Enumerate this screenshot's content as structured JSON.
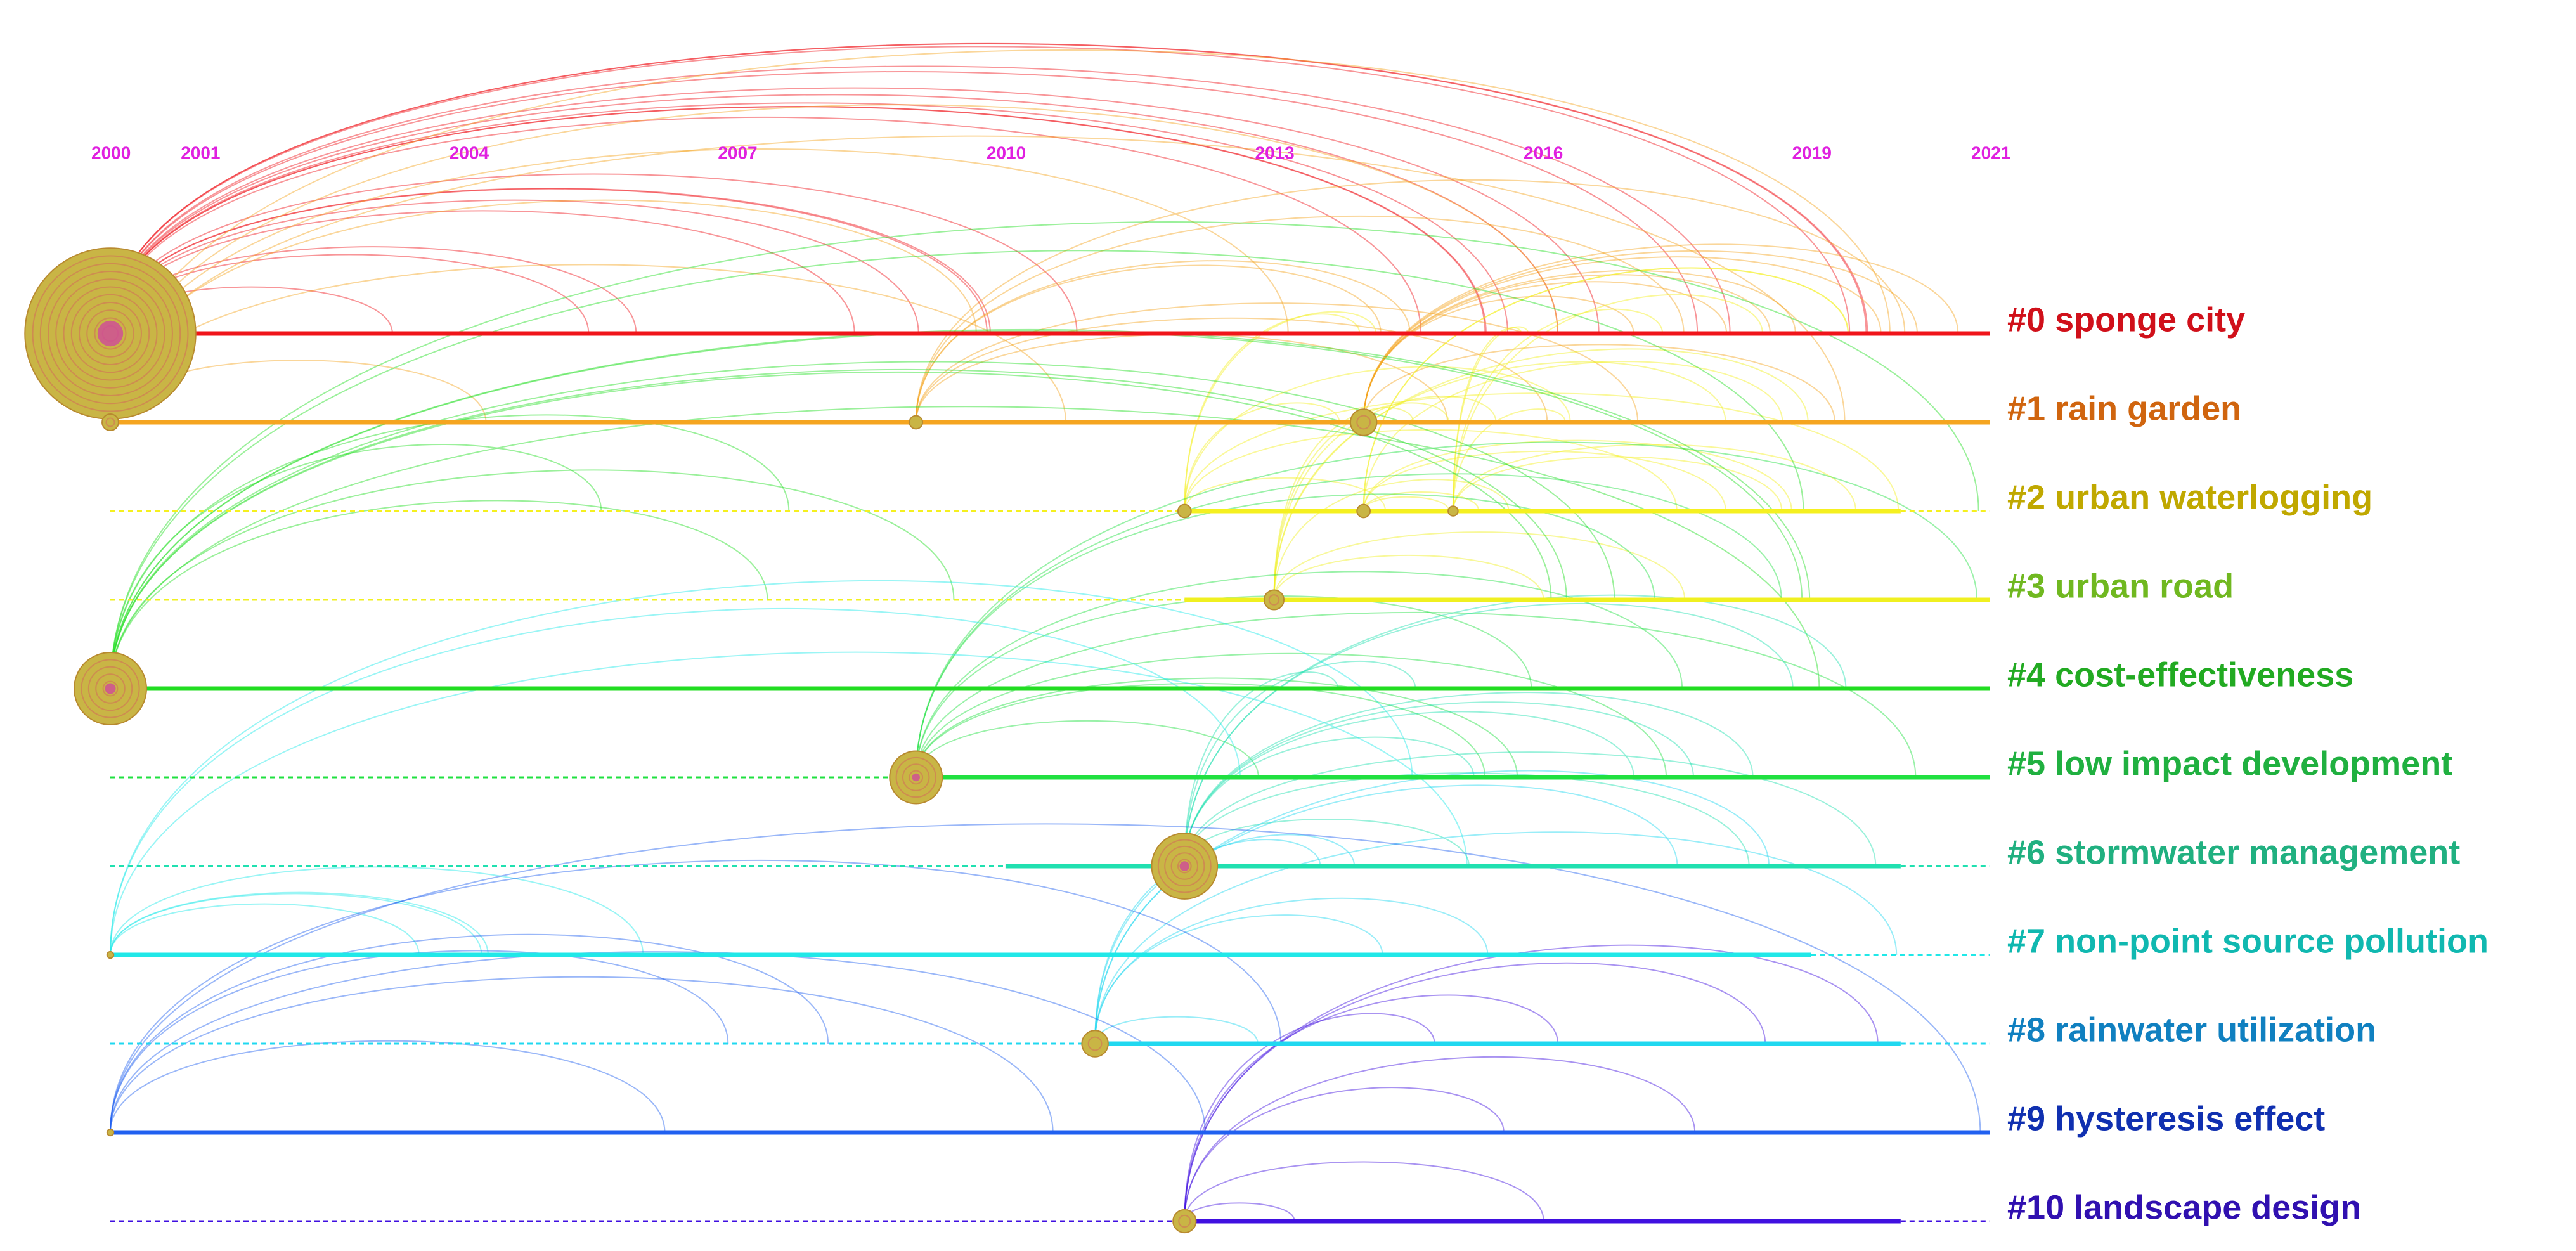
{
  "chart_data": {
    "type": "timeline",
    "xlim": [
      2000,
      2021
    ],
    "xticks": [
      2000,
      2001,
      2004,
      2007,
      2010,
      2013,
      2016,
      2019,
      2021
    ],
    "clusters": [
      {
        "label": "#0 sponge city",
        "color": "#f0141a",
        "label_color": "#d0101a",
        "start": 2000,
        "end": 2021,
        "nodes": [
          {
            "year": 2000,
            "size": 52
          }
        ]
      },
      {
        "label": "#1 rain garden",
        "color": "#f5a520",
        "label_color": "#d0650f",
        "start": 2000,
        "end": 2021,
        "nodes": [
          {
            "year": 2000,
            "size": 5
          },
          {
            "year": 2009,
            "size": 4
          },
          {
            "year": 2014,
            "size": 8
          }
        ]
      },
      {
        "label": "#2 urban waterlogging",
        "color": "#f5f020",
        "label_color": "#c0a800",
        "start": 2012,
        "end": 2020,
        "nodes": [
          {
            "year": 2012,
            "size": 4
          },
          {
            "year": 2014,
            "size": 4
          },
          {
            "year": 2015,
            "size": 3
          }
        ]
      },
      {
        "label": "#3 urban road",
        "color": "#f0f020",
        "label_color": "#70b820",
        "start": 2012,
        "end": 2021,
        "nodes": [
          {
            "year": 2013,
            "size": 6
          }
        ]
      },
      {
        "label": "#4 cost-effectiveness",
        "color": "#22dd22",
        "label_color": "#22aa22",
        "start": 2000,
        "end": 2021,
        "nodes": [
          {
            "year": 2000,
            "size": 22
          }
        ]
      },
      {
        "label": "#5 low impact development",
        "color": "#20e040",
        "label_color": "#20b040",
        "start": 2009,
        "end": 2021,
        "nodes": [
          {
            "year": 2009,
            "size": 16
          }
        ]
      },
      {
        "label": "#6 stormwater management",
        "color": "#20e0b0",
        "label_color": "#20b080",
        "start": 2010,
        "end": 2020,
        "nodes": [
          {
            "year": 2012,
            "size": 20
          }
        ]
      },
      {
        "label": "#7 non-point source pollution",
        "color": "#20e8e8",
        "label_color": "#10b8b0",
        "start": 2000,
        "end": 2019,
        "nodes": [
          {
            "year": 2000,
            "size": 2
          }
        ]
      },
      {
        "label": "#8 rainwater utilization",
        "color": "#20d8f0",
        "label_color": "#1080c0",
        "start": 2011,
        "end": 2020,
        "nodes": [
          {
            "year": 2011,
            "size": 8
          }
        ]
      },
      {
        "label": "#9 hysteresis effect",
        "color": "#2060f0",
        "label_color": "#1030b0",
        "start": 2000,
        "end": 2021,
        "nodes": [
          {
            "year": 2000,
            "size": 2
          }
        ]
      },
      {
        "label": "#10 landscape design",
        "color": "#4010e0",
        "label_color": "#3010b0",
        "start": 2012,
        "end": 2020,
        "nodes": [
          {
            "year": 2012,
            "size": 7
          }
        ]
      }
    ]
  }
}
